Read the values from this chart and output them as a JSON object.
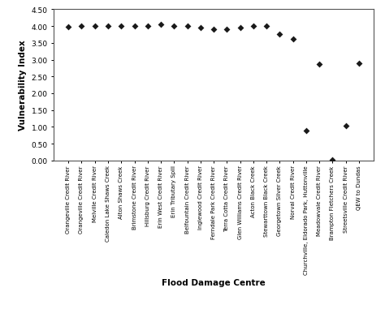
{
  "categories": [
    "Orangeville Credit River",
    "Orangeville Credit River",
    "Melville Credit River",
    "Caledon Lake Shaws Creek",
    "Alton Shaws Creek",
    "Brimstone Credit River",
    "Hillsburg Credit River",
    "Erin West Credit River",
    "Erin Tributary Spill",
    "Belfountain Credit River",
    "Inglewood Credit River",
    "Ferndale Park Credit River",
    "Terra Cotta Credit River",
    "Glen Williams Credit River",
    "Acton Black Creek",
    "Stewarttown Black Creek",
    "Georgetown Silver Creek",
    "Norval Credit River",
    "Churchville, Eldorado Park, Huttonville",
    "Meadowvale Credit River",
    "Brampton Fletchers Creek",
    "Streetsville Credit River",
    "QEW to Dundas"
  ],
  "values": [
    3.97,
    4.0,
    4.0,
    4.0,
    4.0,
    4.0,
    4.0,
    4.05,
    4.0,
    4.0,
    3.95,
    3.9,
    3.9,
    3.95,
    4.0,
    4.0,
    3.75,
    3.62,
    0.88,
    2.87,
    0.02,
    1.02,
    2.88
  ],
  "xlabel": "Flood Damage Centre",
  "ylabel": "Vulnerability Index",
  "ylim": [
    0.0,
    4.5
  ],
  "yticks": [
    0.0,
    0.5,
    1.0,
    1.5,
    2.0,
    2.5,
    3.0,
    3.5,
    4.0,
    4.5
  ],
  "marker": "D",
  "marker_color": "#1a1a1a",
  "marker_size": 4,
  "bg_color": "#ffffff",
  "grid": false,
  "title": ""
}
